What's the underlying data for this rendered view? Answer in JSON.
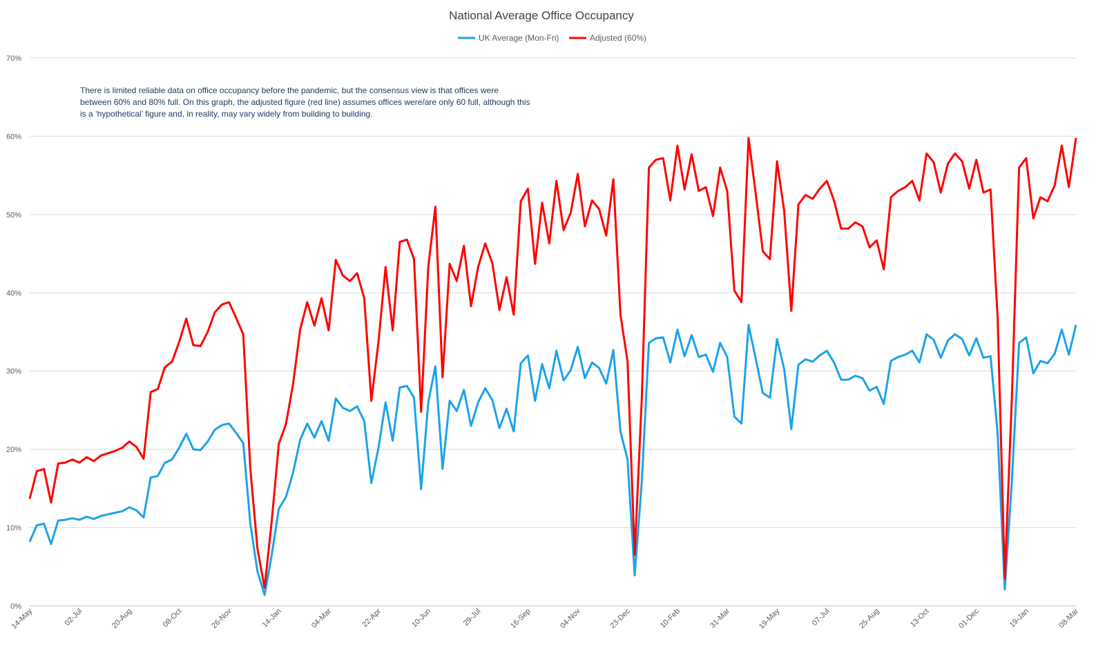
{
  "chart_data": {
    "type": "line",
    "title": "National Average Office Occupancy",
    "ylim": [
      0,
      70
    ],
    "yticks": [
      "0%",
      "10%",
      "20%",
      "30%",
      "40%",
      "50%",
      "60%",
      "70%"
    ],
    "x_tick_labels": [
      "14-May",
      "02-Jul",
      "20-Aug",
      "08-Oct",
      "26-Nov",
      "14-Jan",
      "04-Mar",
      "22-Apr",
      "10-Jun",
      "29-Jul",
      "16-Sep",
      "04-Nov",
      "23-Dec",
      "10-Feb",
      "31-Mar",
      "19-May",
      "07-Jul",
      "25-Aug",
      "13-Oct",
      "01-Dec",
      "19-Jan",
      "08-Mar"
    ],
    "grid": true,
    "legend_position": "top",
    "annotation": [
      "There is limited reliable data on office occupancy before the pandemic, but the consensus view is that offices were",
      "between 60% and 80% full.  On this graph, the adjusted figure (red line) assumes offices were/are only 60 full, although this",
      "is a ‘hypothetical’ figure and, in reality, may vary widely from building to building."
    ],
    "series": [
      {
        "name": "UK Average (Mon-Fri)",
        "color": "#1aa3e8",
        "values": [
          8.2,
          10.3,
          10.5,
          7.9,
          10.9,
          11.0,
          11.2,
          11.0,
          11.4,
          11.1,
          11.5,
          11.7,
          11.9,
          12.1,
          12.6,
          12.2,
          11.3,
          16.4,
          16.6,
          18.3,
          18.7,
          20.2,
          22.0,
          20.0,
          19.9,
          21.0,
          22.5,
          23.1,
          23.3,
          22.1,
          20.8,
          10.5,
          4.4,
          1.4,
          6.5,
          12.4,
          13.9,
          17.0,
          21.2,
          23.3,
          21.5,
          23.6,
          21.1,
          26.5,
          25.3,
          24.9,
          25.5,
          23.6,
          15.7,
          20.2,
          26.0,
          21.1,
          27.9,
          28.1,
          26.6,
          14.9,
          26.0,
          30.6,
          17.5,
          26.2,
          24.9,
          27.6,
          23.0,
          26.0,
          27.8,
          26.3,
          22.7,
          25.2,
          22.3,
          31.0,
          32.0,
          26.2,
          30.9,
          27.8,
          32.6,
          28.8,
          30.1,
          33.1,
          29.1,
          31.1,
          30.4,
          28.4,
          32.7,
          22.3,
          18.7,
          3.9,
          15.9,
          33.6,
          34.2,
          34.3,
          31.1,
          35.3,
          31.9,
          34.6,
          31.8,
          32.1,
          29.9,
          33.6,
          31.8,
          24.2,
          23.3,
          35.9,
          31.6,
          27.2,
          26.6,
          34.1,
          30.3,
          22.6,
          30.8,
          31.5,
          31.2,
          32.0,
          32.6,
          31.1,
          28.9,
          28.9,
          29.4,
          29.1,
          27.5,
          28.0,
          25.8,
          31.3,
          31.8,
          32.1,
          32.6,
          31.1,
          34.7,
          34.0,
          31.7,
          33.9,
          34.7,
          34.1,
          32.0,
          34.2,
          31.7,
          31.9,
          22.0,
          2.1,
          16.0,
          33.6,
          34.3,
          29.7,
          31.3,
          31.0,
          32.2,
          35.3,
          32.1,
          35.9
        ]
      },
      {
        "name": "Adjusted (60%)",
        "color": "#ff0000",
        "values": [
          13.7,
          17.2,
          17.5,
          13.2,
          18.2,
          18.3,
          18.7,
          18.3,
          19.0,
          18.5,
          19.2,
          19.5,
          19.8,
          20.2,
          21.0,
          20.3,
          18.8,
          27.3,
          27.7,
          30.5,
          31.2,
          33.7,
          36.7,
          33.3,
          33.2,
          35.0,
          37.5,
          38.5,
          38.8,
          36.8,
          34.7,
          17.5,
          7.3,
          2.3,
          10.8,
          20.7,
          23.2,
          28.3,
          35.3,
          38.8,
          35.8,
          39.3,
          35.2,
          44.2,
          42.2,
          41.5,
          42.5,
          39.3,
          26.2,
          33.7,
          43.3,
          35.2,
          46.5,
          46.8,
          44.3,
          24.8,
          43.3,
          51.0,
          29.2,
          43.7,
          41.5,
          46.0,
          38.3,
          43.3,
          46.3,
          43.8,
          37.8,
          42.0,
          37.2,
          51.7,
          53.3,
          43.7,
          51.5,
          46.3,
          54.3,
          48.0,
          50.2,
          55.2,
          48.5,
          51.8,
          50.7,
          47.3,
          54.5,
          37.2,
          31.2,
          6.5,
          26.5,
          56.0,
          57.0,
          57.2,
          51.8,
          58.8,
          53.2,
          57.7,
          53.0,
          53.5,
          49.8,
          56.0,
          53.0,
          40.3,
          38.8,
          59.8,
          52.7,
          45.3,
          44.3,
          56.8,
          50.5,
          37.7,
          51.3,
          52.5,
          52.0,
          53.3,
          54.3,
          51.8,
          48.2,
          48.2,
          49.0,
          48.5,
          45.8,
          46.7,
          43.0,
          52.2,
          53.0,
          53.5,
          54.3,
          51.8,
          57.8,
          56.7,
          52.8,
          56.5,
          57.8,
          56.8,
          53.3,
          57.0,
          52.8,
          53.2,
          36.7,
          3.5,
          26.7,
          56.0,
          57.2,
          49.5,
          52.2,
          51.7,
          53.7,
          58.8,
          53.5,
          59.8
        ]
      }
    ]
  }
}
